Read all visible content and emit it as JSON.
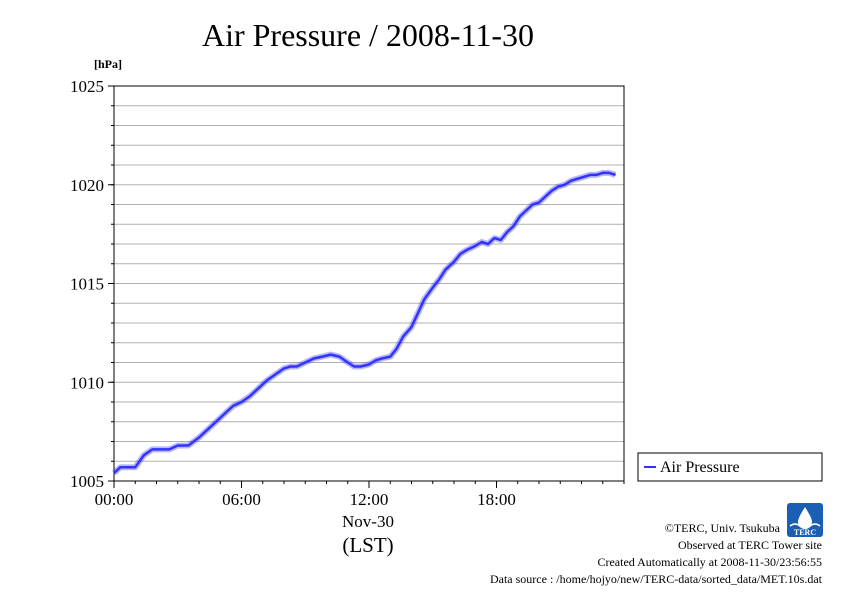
{
  "chart_data": {
    "type": "line",
    "title": "Air Pressure / 2008-11-30",
    "ylabel": "[hPa]",
    "xlabel_date": "Nov-30",
    "xlabel_tz": "(LST)",
    "ylim": [
      1005,
      1025
    ],
    "xlim_hours": [
      0,
      24
    ],
    "y_ticks": [
      "1005",
      "1010",
      "1015",
      "1020",
      "1025"
    ],
    "y_minor_step": 1,
    "x_ticks": [
      {
        "hour": 0,
        "label": "00:00"
      },
      {
        "hour": 6,
        "label": "06:00"
      },
      {
        "hour": 12,
        "label": "12:00"
      },
      {
        "hour": 18,
        "label": "18:00"
      }
    ],
    "grid": true,
    "legend_position": "right",
    "series": [
      {
        "name": "Air Pressure",
        "color": "#3333ff",
        "x_hours": [
          0.0,
          0.3,
          0.6,
          1.0,
          1.4,
          1.8,
          2.0,
          2.3,
          2.6,
          3.0,
          3.5,
          4.0,
          4.3,
          4.6,
          5.0,
          5.3,
          5.6,
          6.0,
          6.4,
          6.8,
          7.2,
          7.6,
          8.0,
          8.3,
          8.6,
          9.0,
          9.4,
          9.8,
          10.2,
          10.6,
          11.0,
          11.3,
          11.6,
          12.0,
          12.3,
          12.6,
          13.0,
          13.3,
          13.6,
          14.0,
          14.3,
          14.6,
          15.0,
          15.3,
          15.6,
          16.0,
          16.3,
          16.6,
          17.0,
          17.3,
          17.6,
          17.9,
          18.2,
          18.5,
          18.8,
          19.1,
          19.4,
          19.7,
          20.0,
          20.3,
          20.6,
          20.9,
          21.2,
          21.5,
          21.8,
          22.1,
          22.4,
          22.7,
          23.0,
          23.3,
          23.6
        ],
        "values": [
          1005.4,
          1005.7,
          1005.7,
          1005.7,
          1006.3,
          1006.6,
          1006.6,
          1006.6,
          1006.6,
          1006.8,
          1006.8,
          1007.2,
          1007.5,
          1007.8,
          1008.2,
          1008.5,
          1008.8,
          1009.0,
          1009.3,
          1009.7,
          1010.1,
          1010.4,
          1010.7,
          1010.8,
          1010.8,
          1011.0,
          1011.2,
          1011.3,
          1011.4,
          1011.3,
          1011.0,
          1010.8,
          1010.8,
          1010.9,
          1011.1,
          1011.2,
          1011.3,
          1011.7,
          1012.3,
          1012.8,
          1013.5,
          1014.2,
          1014.8,
          1015.2,
          1015.7,
          1016.1,
          1016.5,
          1016.7,
          1016.9,
          1017.1,
          1017.0,
          1017.3,
          1017.2,
          1017.6,
          1017.9,
          1018.4,
          1018.7,
          1019.0,
          1019.1,
          1019.4,
          1019.7,
          1019.9,
          1020.0,
          1020.2,
          1020.3,
          1020.4,
          1020.5,
          1020.5,
          1020.6,
          1020.6,
          1020.5
        ]
      }
    ]
  },
  "footer": {
    "copyright": "©TERC, Univ. Tsukuba",
    "observed": "Observed at TERC Tower site",
    "created": "Created Automatically at 2008-11-30/23:56:55",
    "source": "Data source : /home/hojyo/new/TERC-data/sorted_data/MET.10s.dat",
    "logo_text": "TERC"
  }
}
